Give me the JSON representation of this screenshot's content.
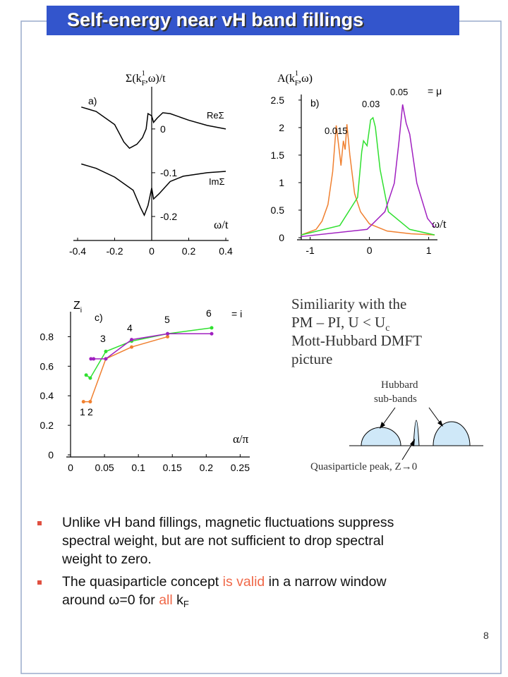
{
  "title": "Self-energy near vH band fillings",
  "chart_data": [
    {
      "type": "line",
      "y_label": {
        "text": "Σ(k",
        "sub": "F",
        "sup": "1",
        "tail": ",ω)/t"
      },
      "x_label": "ω/t",
      "annotations": [
        "a)"
      ],
      "xlim": [
        -0.4,
        0.4
      ],
      "ylim": [
        -0.25,
        0.09
      ],
      "xticks": [
        -0.4,
        -0.2,
        0,
        0.2,
        0.4
      ],
      "yticks": [
        0,
        -0.1,
        -0.2
      ],
      "series": [
        {
          "name": "ReΣ",
          "color": "#000000",
          "x": [
            -0.38,
            -0.3,
            -0.2,
            -0.15,
            -0.12,
            -0.08,
            -0.05,
            -0.03,
            -0.02,
            0,
            0.01,
            0.03,
            0.06,
            0.1,
            0.2,
            0.3,
            0.4
          ],
          "values": [
            0.05,
            0.04,
            0.01,
            -0.03,
            -0.044,
            -0.035,
            -0.02,
            0.0,
            0.035,
            0.03,
            0.015,
            0.025,
            0.037,
            0.035,
            0.02,
            0.008,
            0.0
          ]
        },
        {
          "name": "ImΣ",
          "color": "#000000",
          "x": [
            -0.38,
            -0.3,
            -0.2,
            -0.1,
            -0.06,
            -0.04,
            -0.02,
            0,
            0.01,
            0.04,
            0.1,
            0.17,
            0.3,
            0.4
          ],
          "values": [
            -0.08,
            -0.09,
            -0.11,
            -0.14,
            -0.18,
            -0.197,
            -0.175,
            -0.135,
            -0.16,
            -0.148,
            -0.12,
            -0.108,
            -0.1,
            -0.097
          ]
        }
      ]
    },
    {
      "type": "line",
      "y_label": {
        "text": "A(k",
        "sub": "F",
        "sup": "1",
        "tail": ",ω)"
      },
      "x_label": "ω/t",
      "annotations": [
        "b)",
        "= μ"
      ],
      "xlim": [
        -1.15,
        1.1
      ],
      "ylim": [
        0,
        2.55
      ],
      "xticks": [
        -1,
        0,
        1
      ],
      "yticks": [
        0,
        0.5,
        1,
        1.5,
        2,
        2.5
      ],
      "series": [
        {
          "name": "0.015",
          "color": "#f08030",
          "x": [
            -1.15,
            -0.9,
            -0.8,
            -0.7,
            -0.62,
            -0.56,
            -0.5,
            -0.48,
            -0.44,
            -0.41,
            -0.38,
            -0.33,
            -0.25,
            -0.15,
            0,
            0.3,
            0.7,
            1.1
          ],
          "values": [
            0.05,
            0.15,
            0.3,
            0.6,
            1.2,
            2.04,
            1.5,
            1.31,
            1.76,
            1.6,
            2.06,
            1.5,
            0.8,
            0.47,
            0.25,
            0.12,
            0.07,
            0.05
          ]
        },
        {
          "name": "0.03",
          "color": "#30e030",
          "x": [
            -1.15,
            -0.5,
            -0.2,
            -0.13,
            -0.1,
            -0.04,
            0.02,
            0.06,
            0.1,
            0.18,
            0.32,
            0.68,
            1.1
          ],
          "values": [
            0.05,
            0.22,
            0.73,
            1.56,
            1.76,
            1.67,
            2.14,
            2.18,
            2.01,
            1.24,
            0.47,
            0.15,
            0.05
          ]
        },
        {
          "name": "0.05",
          "color": "#a020c0",
          "x": [
            -1.15,
            -0.04,
            0.26,
            0.42,
            0.5,
            0.56,
            0.62,
            0.68,
            0.8,
            0.98,
            1.1
          ],
          "values": [
            0.02,
            0.15,
            0.47,
            0.99,
            1.76,
            2.42,
            2.08,
            1.88,
            0.99,
            0.35,
            0.19
          ]
        }
      ]
    },
    {
      "type": "line",
      "y_label": {
        "text": "Z",
        "sub": "i"
      },
      "x_label": "α/π",
      "annotations": [
        "c)",
        "= i",
        "1",
        "2",
        "3",
        "4",
        "5",
        "6"
      ],
      "xlim": [
        0,
        0.26
      ],
      "ylim": [
        0,
        0.95
      ],
      "xticks": [
        0,
        0.05,
        0.1,
        0.15,
        0.2,
        0.25
      ],
      "yticks": [
        0,
        0.2,
        0.4,
        0.6,
        0.8
      ],
      "markers": true,
      "series": [
        {
          "color": "#f08030",
          "x": [
            0.019,
            0.029,
            0.052,
            0.09,
            0.143
          ],
          "values": [
            0.36,
            0.36,
            0.65,
            0.73,
            0.8
          ]
        },
        {
          "color": "#30e030",
          "x": [
            0.023,
            0.029,
            0.052,
            0.09,
            0.143,
            0.208
          ],
          "values": [
            0.54,
            0.52,
            0.7,
            0.77,
            0.82,
            0.86
          ]
        },
        {
          "color": "#a020c0",
          "x": [
            0.03,
            0.034,
            0.052,
            0.09,
            0.143,
            0.208
          ],
          "values": [
            0.65,
            0.65,
            0.65,
            0.78,
            0.82,
            0.82
          ]
        }
      ]
    }
  ],
  "note": {
    "lines": [
      {
        "text": "Similiarity with the"
      },
      {
        "text": "PM – PI, U < U",
        "sub": "c"
      },
      {
        "text": "Mott-Hubbard DMFT"
      },
      {
        "text": "picture"
      }
    ]
  },
  "diagram": {
    "hubbard": [
      "Hubbard",
      "sub-bands"
    ],
    "peak": "Quasiparticle peak, Z→0"
  },
  "bullets": [
    [
      [
        {
          "text": "Unlike vH band fillings, magnetic fluctuations suppress"
        }
      ],
      [
        {
          "text": "spectral weight, but are not sufficient to drop spectral"
        }
      ],
      [
        {
          "text": "weight to zero."
        }
      ]
    ],
    [
      [
        {
          "text": "The quasiparticle concept "
        },
        {
          "text": "is valid",
          "color": "#f06848"
        },
        {
          "text": " in a narrow window"
        }
      ],
      [
        {
          "text": "around ω=0 for "
        },
        {
          "text": "all",
          "color": "#f06848"
        },
        {
          "text": " k"
        },
        {
          "text": "F",
          "sub": true
        }
      ]
    ]
  ],
  "page_number": "8"
}
